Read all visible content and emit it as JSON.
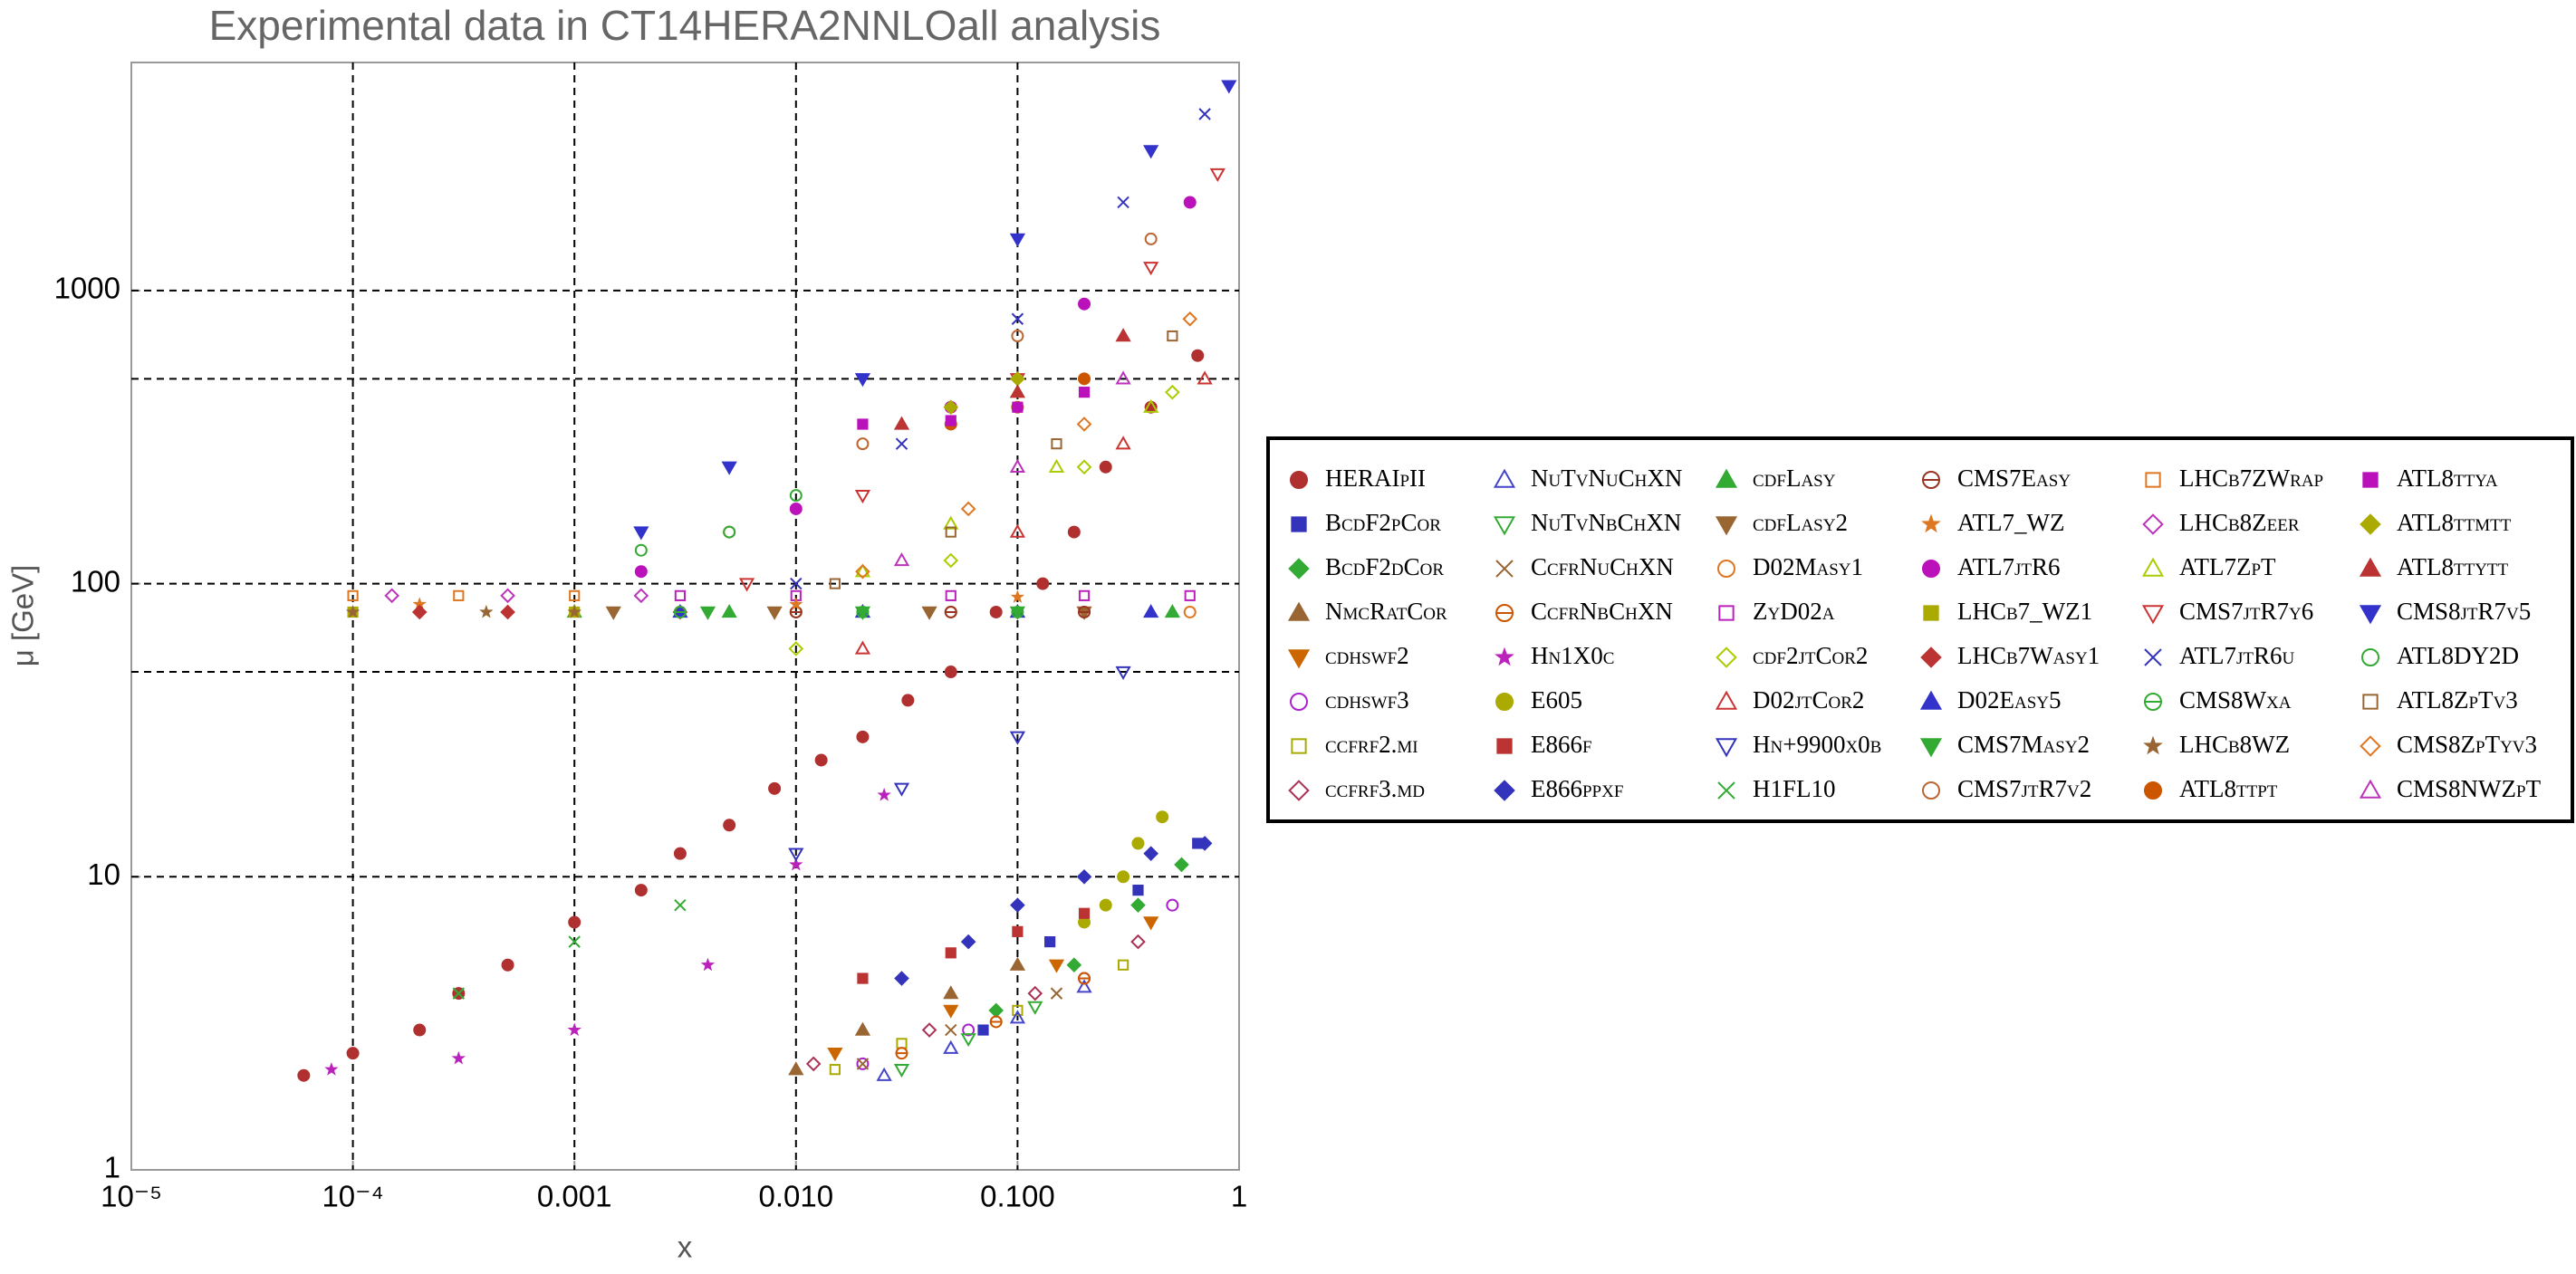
{
  "chart_data": {
    "type": "scatter",
    "title": "Experimental data in CT14HERA2NNLOall analysis",
    "x_label": "x",
    "y_label": "μ [GeV]",
    "xscale": "log",
    "yscale": "log",
    "grid": true,
    "xlim": [
      1e-05,
      1
    ],
    "ylim": [
      1,
      6000
    ],
    "xticks": [
      {
        "value": 1e-05,
        "label": "10⁻⁵"
      },
      {
        "value": 0.0001,
        "label": "10⁻⁴"
      },
      0.001,
      {
        "value": 0.01,
        "label": "0.010"
      },
      {
        "value": 0.1,
        "label": "0.100"
      },
      1
    ],
    "yticks": [
      1,
      10,
      100,
      1000
    ],
    "ygridlines": [
      50,
      500
    ],
    "legend_position": "right",
    "series": [
      {
        "name": "HERAIpII",
        "color": "#b03030",
        "marker": "circle",
        "filled": true,
        "x": [
          6e-05,
          0.0001,
          0.0002,
          0.0003,
          0.0005,
          0.001,
          0.002,
          0.003,
          0.005,
          0.008,
          0.013,
          0.02,
          0.032,
          0.05,
          0.08,
          0.13,
          0.18,
          0.25,
          0.4,
          0.65
        ],
        "values": [
          2.1,
          2.5,
          3,
          4,
          5,
          7,
          9,
          12,
          15,
          20,
          25,
          30,
          40,
          50,
          80,
          100,
          150,
          250,
          400,
          600
        ]
      },
      {
        "name": "BcdF2pCor",
        "color": "#3333bb",
        "marker": "square",
        "filled": true,
        "x": [
          0.07,
          0.14,
          0.35,
          0.65
        ],
        "values": [
          3,
          6,
          9,
          13
        ]
      },
      {
        "name": "BcdF2dCor",
        "color": "#33aa33",
        "marker": "diamond",
        "filled": true,
        "x": [
          0.08,
          0.18,
          0.35,
          0.55
        ],
        "values": [
          3.5,
          5,
          8,
          11
        ]
      },
      {
        "name": "NmcRatCor",
        "color": "#996633",
        "marker": "tri-up",
        "filled": true,
        "x": [
          0.01,
          0.02,
          0.05,
          0.1
        ],
        "values": [
          2.2,
          3,
          4,
          5
        ]
      },
      {
        "name": "cdhswf2",
        "color": "#cc6600",
        "marker": "tri-down",
        "filled": true,
        "x": [
          0.015,
          0.05,
          0.15,
          0.4
        ],
        "values": [
          2.5,
          3.5,
          5,
          7
        ]
      },
      {
        "name": "cdhswf3",
        "color": "#aa22cc",
        "marker": "circle",
        "filled": false,
        "x": [
          0.02,
          0.06,
          0.2,
          0.5
        ],
        "values": [
          2.3,
          3,
          4.5,
          8
        ]
      },
      {
        "name": "ccfrf2.mi",
        "color": "#aaaa00",
        "marker": "square",
        "filled": false,
        "x": [
          0.015,
          0.03,
          0.1,
          0.3
        ],
        "values": [
          2.2,
          2.7,
          3.5,
          5
        ]
      },
      {
        "name": "ccfrf3.md",
        "color": "#aa3355",
        "marker": "diamond",
        "filled": false,
        "x": [
          0.012,
          0.04,
          0.12,
          0.35
        ],
        "values": [
          2.3,
          3,
          4,
          6
        ]
      },
      {
        "name": "NuTvNuChXN",
        "color": "#4444cc",
        "marker": "tri-up",
        "filled": false,
        "x": [
          0.025,
          0.05,
          0.1,
          0.2
        ],
        "values": [
          2.1,
          2.6,
          3.3,
          4.2
        ]
      },
      {
        "name": "NuTvNbChXN",
        "color": "#33aa33",
        "marker": "tri-down",
        "filled": false,
        "x": [
          0.03,
          0.06,
          0.12
        ],
        "values": [
          2.2,
          2.8,
          3.6
        ]
      },
      {
        "name": "CcfrNuChXN",
        "color": "#996633",
        "marker": "x",
        "filled": false,
        "x": [
          0.02,
          0.05,
          0.15
        ],
        "values": [
          2.3,
          3,
          4
        ]
      },
      {
        "name": "CcfrNbChXN",
        "color": "#cc5500",
        "marker": "circle-minus",
        "filled": false,
        "x": [
          0.03,
          0.08,
          0.2
        ],
        "values": [
          2.5,
          3.2,
          4.5
        ]
      },
      {
        "name": "Hn1X0c",
        "color": "#bb22bb",
        "marker": "star",
        "filled": true,
        "x": [
          8e-05,
          0.0003,
          0.001,
          0.004,
          0.01,
          0.025
        ],
        "values": [
          2.2,
          2.4,
          3,
          5,
          11,
          19
        ]
      },
      {
        "name": "E605",
        "color": "#aaaa00",
        "marker": "circle",
        "filled": true,
        "x": [
          0.2,
          0.25,
          0.3,
          0.35,
          0.45
        ],
        "values": [
          7,
          8,
          10,
          13,
          16
        ]
      },
      {
        "name": "E866f",
        "color": "#bb3333",
        "marker": "square",
        "filled": true,
        "x": [
          0.02,
          0.05,
          0.1,
          0.2
        ],
        "values": [
          4.5,
          5.5,
          6.5,
          7.5
        ]
      },
      {
        "name": "E866ppxf",
        "color": "#3333bb",
        "marker": "diamond",
        "filled": true,
        "x": [
          0.03,
          0.06,
          0.1,
          0.2,
          0.4,
          0.7
        ],
        "values": [
          4.5,
          6,
          8,
          10,
          12,
          13
        ]
      },
      {
        "name": "cdfLasy",
        "color": "#33aa33",
        "marker": "tri-up",
        "filled": true,
        "x": [
          0.001,
          0.005,
          0.02,
          0.1,
          0.5
        ],
        "values": [
          80,
          80,
          80,
          80,
          80
        ]
      },
      {
        "name": "cdfLasy2",
        "color": "#996633",
        "marker": "tri-down",
        "filled": true,
        "x": [
          0.0015,
          0.008,
          0.04,
          0.2
        ],
        "values": [
          80,
          80,
          80,
          80
        ]
      },
      {
        "name": "D02Masy1",
        "color": "#dd7722",
        "marker": "circle",
        "filled": false,
        "x": [
          0.01,
          0.05,
          0.2,
          0.6
        ],
        "values": [
          80,
          80,
          80,
          80
        ]
      },
      {
        "name": "ZyD02a",
        "color": "#bb22bb",
        "marker": "square",
        "filled": false,
        "x": [
          0.003,
          0.01,
          0.05,
          0.2,
          0.6
        ],
        "values": [
          91,
          91,
          91,
          91,
          91
        ]
      },
      {
        "name": "cdf2jtCor2",
        "color": "#aacc00",
        "marker": "diamond",
        "filled": false,
        "x": [
          0.01,
          0.05,
          0.2,
          0.5
        ],
        "values": [
          60,
          120,
          250,
          450
        ]
      },
      {
        "name": "D02jtCor2",
        "color": "#cc3333",
        "marker": "tri-up",
        "filled": false,
        "x": [
          0.02,
          0.1,
          0.3,
          0.7
        ],
        "values": [
          60,
          150,
          300,
          500
        ]
      },
      {
        "name": "Hn+9900x0b",
        "color": "#3333bb",
        "marker": "tri-down",
        "filled": false,
        "x": [
          0.01,
          0.03,
          0.1,
          0.3
        ],
        "values": [
          12,
          20,
          30,
          50
        ]
      },
      {
        "name": "H1FL10",
        "color": "#33aa33",
        "marker": "x",
        "filled": false,
        "x": [
          0.0003,
          0.001,
          0.003
        ],
        "values": [
          4,
          6,
          8
        ]
      },
      {
        "name": "CMS7Easy",
        "color": "#993322",
        "marker": "circle-minus",
        "filled": false,
        "x": [
          0.003,
          0.01,
          0.05,
          0.2
        ],
        "values": [
          80,
          80,
          80,
          80
        ]
      },
      {
        "name": "ATL7_WZ",
        "color": "#dd7722",
        "marker": "star",
        "filled": true,
        "x": [
          0.0002,
          0.001,
          0.01,
          0.1
        ],
        "values": [
          85,
          80,
          85,
          90
        ]
      },
      {
        "name": "ATL7jtR6",
        "color": "#bb11bb",
        "marker": "circle",
        "filled": true,
        "x": [
          0.002,
          0.01,
          0.05,
          0.2,
          0.6
        ],
        "values": [
          110,
          180,
          400,
          900,
          2000
        ]
      },
      {
        "name": "LHCb7_WZ1",
        "color": "#aaaa00",
        "marker": "square",
        "filled": true,
        "x": [
          0.0001,
          0.001
        ],
        "values": [
          80,
          80
        ]
      },
      {
        "name": "LHCb7Wasy1",
        "color": "#bb3333",
        "marker": "diamond",
        "filled": true,
        "x": [
          0.0002,
          0.0005,
          0.003
        ],
        "values": [
          80,
          80,
          80
        ]
      },
      {
        "name": "D02Easy5",
        "color": "#3333cc",
        "marker": "tri-up",
        "filled": true,
        "x": [
          0.003,
          0.02,
          0.1,
          0.4
        ],
        "values": [
          80,
          80,
          80,
          80
        ]
      },
      {
        "name": "CMS7Masy2",
        "color": "#33aa33",
        "marker": "tri-down",
        "filled": true,
        "x": [
          0.004,
          0.02,
          0.1
        ],
        "values": [
          80,
          80,
          80
        ]
      },
      {
        "name": "CMS7jtR7v2",
        "color": "#bb6633",
        "marker": "circle",
        "filled": false,
        "x": [
          0.005,
          0.02,
          0.1,
          0.4
        ],
        "values": [
          150,
          300,
          700,
          1500
        ]
      },
      {
        "name": "LHCb7ZWrap",
        "color": "#dd7722",
        "marker": "square",
        "filled": false,
        "x": [
          0.0001,
          0.0003,
          0.001
        ],
        "values": [
          91,
          91,
          91
        ]
      },
      {
        "name": "LHCb8Zeer",
        "color": "#bb33bb",
        "marker": "diamond",
        "filled": false,
        "x": [
          0.00015,
          0.0005,
          0.002
        ],
        "values": [
          91,
          91,
          91
        ]
      },
      {
        "name": "ATL7ZpT",
        "color": "#aacc00",
        "marker": "tri-up",
        "filled": false,
        "x": [
          0.02,
          0.05,
          0.15,
          0.4
        ],
        "values": [
          110,
          160,
          250,
          400
        ]
      },
      {
        "name": "CMS7jtR7y6",
        "color": "#cc3333",
        "marker": "tri-down",
        "filled": false,
        "x": [
          0.006,
          0.02,
          0.1,
          0.4,
          0.8
        ],
        "values": [
          100,
          200,
          500,
          1200,
          2500
        ]
      },
      {
        "name": "ATL7jtR6u",
        "color": "#3333bb",
        "marker": "x",
        "filled": false,
        "x": [
          0.01,
          0.03,
          0.1,
          0.3,
          0.7
        ],
        "values": [
          100,
          300,
          800,
          2000,
          4000
        ]
      },
      {
        "name": "CMS8Wxa",
        "color": "#33aa33",
        "marker": "circle-minus",
        "filled": false,
        "x": [
          0.003,
          0.02,
          0.1
        ],
        "values": [
          80,
          80,
          80
        ]
      },
      {
        "name": "LHCb8WZ",
        "color": "#996633",
        "marker": "star",
        "filled": true,
        "x": [
          0.0001,
          0.0004,
          0.001
        ],
        "values": [
          80,
          80,
          80
        ]
      },
      {
        "name": "ATL8ttpt",
        "color": "#cc5500",
        "marker": "circle",
        "filled": true,
        "x": [
          0.05,
          0.1,
          0.2
        ],
        "values": [
          350,
          400,
          500
        ]
      },
      {
        "name": "ATL8ttya",
        "color": "#bb11bb",
        "marker": "square",
        "filled": true,
        "x": [
          0.02,
          0.05,
          0.1,
          0.2
        ],
        "values": [
          350,
          360,
          400,
          450
        ]
      },
      {
        "name": "ATL8ttmtt",
        "color": "#aaaa00",
        "marker": "diamond",
        "filled": true,
        "x": [
          0.05,
          0.1
        ],
        "values": [
          400,
          500
        ]
      },
      {
        "name": "ATL8ttytt",
        "color": "#bb3333",
        "marker": "tri-up",
        "filled": true,
        "x": [
          0.03,
          0.1,
          0.3
        ],
        "values": [
          350,
          450,
          700
        ]
      },
      {
        "name": "CMS8jtR7v5",
        "color": "#3333cc",
        "marker": "tri-down",
        "filled": true,
        "x": [
          0.002,
          0.005,
          0.02,
          0.1,
          0.4,
          0.9
        ],
        "values": [
          150,
          250,
          500,
          1500,
          3000,
          5000
        ]
      },
      {
        "name": "ATL8DY2D",
        "color": "#33aa33",
        "marker": "circle",
        "filled": false,
        "x": [
          0.002,
          0.005,
          0.01
        ],
        "values": [
          130,
          150,
          200
        ]
      },
      {
        "name": "ATL8ZpTv3",
        "color": "#996633",
        "marker": "square",
        "filled": false,
        "x": [
          0.015,
          0.05,
          0.15,
          0.5
        ],
        "values": [
          100,
          150,
          300,
          700
        ]
      },
      {
        "name": "CMS8ZpTyv3",
        "color": "#dd7722",
        "marker": "diamond",
        "filled": false,
        "x": [
          0.02,
          0.06,
          0.2,
          0.6
        ],
        "values": [
          110,
          180,
          350,
          800
        ]
      },
      {
        "name": "CMS8NWZpT",
        "color": "#bb33bb",
        "marker": "tri-up",
        "filled": false,
        "x": [
          0.03,
          0.1,
          0.3
        ],
        "values": [
          120,
          250,
          500
        ]
      }
    ]
  }
}
